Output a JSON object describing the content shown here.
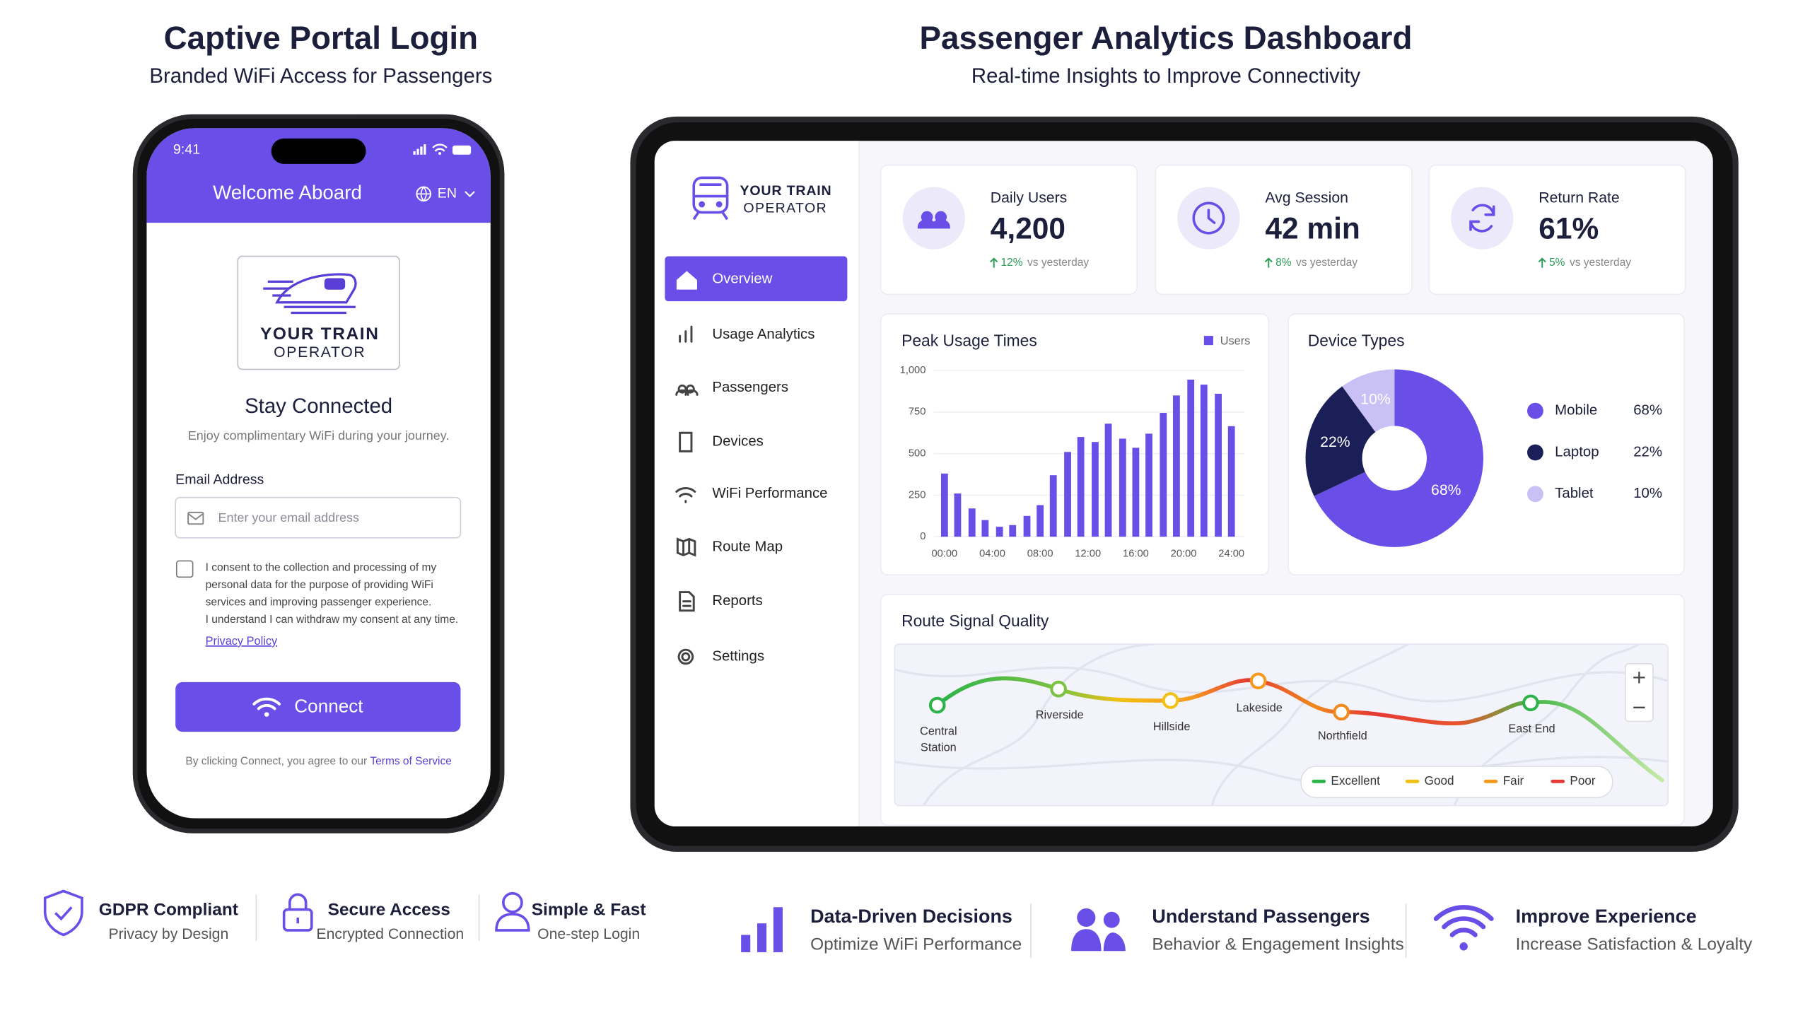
{
  "left": {
    "title": "Captive Portal Login",
    "subtitle": "Branded WiFi Access for Passengers"
  },
  "right": {
    "title": "Passenger Analytics Dashboard",
    "subtitle": "Real-time Insights to Improve Connectivity"
  },
  "phone": {
    "time": "9:41",
    "header": "Welcome Aboard",
    "language": "EN",
    "logo": [
      "YOUR TRAIN",
      "OPERATOR"
    ],
    "heading": "Stay Connected",
    "tagline": "Enjoy complimentary WiFi during your journey.",
    "email_label": "Email Address",
    "email_placeholder": "Enter your email address",
    "consent": [
      "I consent to the collection and processing of my",
      "personal data for the purpose of providing WiFi",
      "services and improving passenger experience.",
      "I understand I can withdraw my consent at any time."
    ],
    "privacy_link": "Privacy Policy",
    "button": "Connect",
    "footer": "By clicking Connect, you agree to our",
    "footer_link": "Terms of Service"
  },
  "dashboard": {
    "brand": [
      "YOUR TRAIN",
      "OPERATOR"
    ],
    "nav": [
      "Overview",
      "Usage Analytics",
      "Passengers",
      "Devices",
      "WiFi Performance",
      "Route Map",
      "Reports",
      "Settings"
    ],
    "kpis": [
      {
        "label": "Daily Users",
        "value": "4,200",
        "change": "12%",
        "note": "vs yesterday"
      },
      {
        "label": "Avg Session",
        "value": "42 min",
        "change": "8%",
        "note": "vs yesterday"
      },
      {
        "label": "Return Rate",
        "value": "61%",
        "change": "5%",
        "note": "vs yesterday"
      }
    ],
    "peak_usage": {
      "type": "bar",
      "title": "Peak Usage Times",
      "series_name": "Users",
      "color": "#6a4ee8",
      "x": [
        0,
        1.1,
        2.3,
        3.4,
        4.6,
        5.7,
        6.9,
        8,
        9.1,
        10.3,
        11.4,
        12.6,
        13.7,
        14.9,
        16,
        17.1,
        18.3,
        19.4,
        20.6,
        21.7,
        22.9,
        24
      ],
      "values": [
        380,
        260,
        170,
        100,
        60,
        70,
        125,
        190,
        370,
        510,
        600,
        570,
        680,
        590,
        535,
        620,
        745,
        850,
        945,
        915,
        860,
        665
      ],
      "xlim": [
        -0.6,
        24.6
      ],
      "ylim": [
        0,
        1000
      ],
      "yticks": [
        0,
        250,
        500,
        750,
        {
          "value": 1000,
          "label": "1,000"
        }
      ],
      "xticks": [
        {
          "value": 0,
          "label": "00:00"
        },
        {
          "value": 4,
          "label": "04:00"
        },
        {
          "value": 8,
          "label": "08:00"
        },
        {
          "value": 12,
          "label": "12:00"
        },
        {
          "value": 16,
          "label": "16:00"
        },
        {
          "value": 20,
          "label": "20:00"
        },
        {
          "value": 24,
          "label": "24:00"
        }
      ],
      "grid": true
    },
    "device_types": {
      "type": "pie",
      "title": "Device Types",
      "categories": [
        "Mobile",
        "Laptop",
        "Tablet"
      ],
      "values": [
        68,
        22,
        10
      ],
      "value_labels": [
        "68%",
        "22%",
        "10%"
      ],
      "colors": [
        "#6a4ee8",
        "#1a2057",
        "#c9c0f6"
      ]
    },
    "route": {
      "title": "Route Signal Quality",
      "stations": [
        [
          "Central",
          "Station"
        ],
        [
          "Riverside"
        ],
        [
          "Hillside"
        ],
        [
          "Lakeside"
        ],
        [
          "Northfield"
        ],
        [
          "East End"
        ]
      ],
      "legend": [
        "Excellent",
        "Good",
        "Fair",
        "Poor"
      ]
    }
  },
  "features": [
    {
      "title": "GDPR Compliant",
      "subtitle": "Privacy by Design"
    },
    {
      "title": "Secure Access",
      "subtitle": "Encrypted Connection"
    },
    {
      "title": "Simple & Fast",
      "subtitle": "One-step Login"
    },
    {
      "title": "Data-Driven Decisions",
      "subtitle": "Optimize WiFi Performance"
    },
    {
      "title": "Understand Passengers",
      "subtitle": "Behavior & Engagement Insights"
    },
    {
      "title": "Improve Experience",
      "subtitle": "Increase Satisfaction & Loyalty"
    }
  ]
}
